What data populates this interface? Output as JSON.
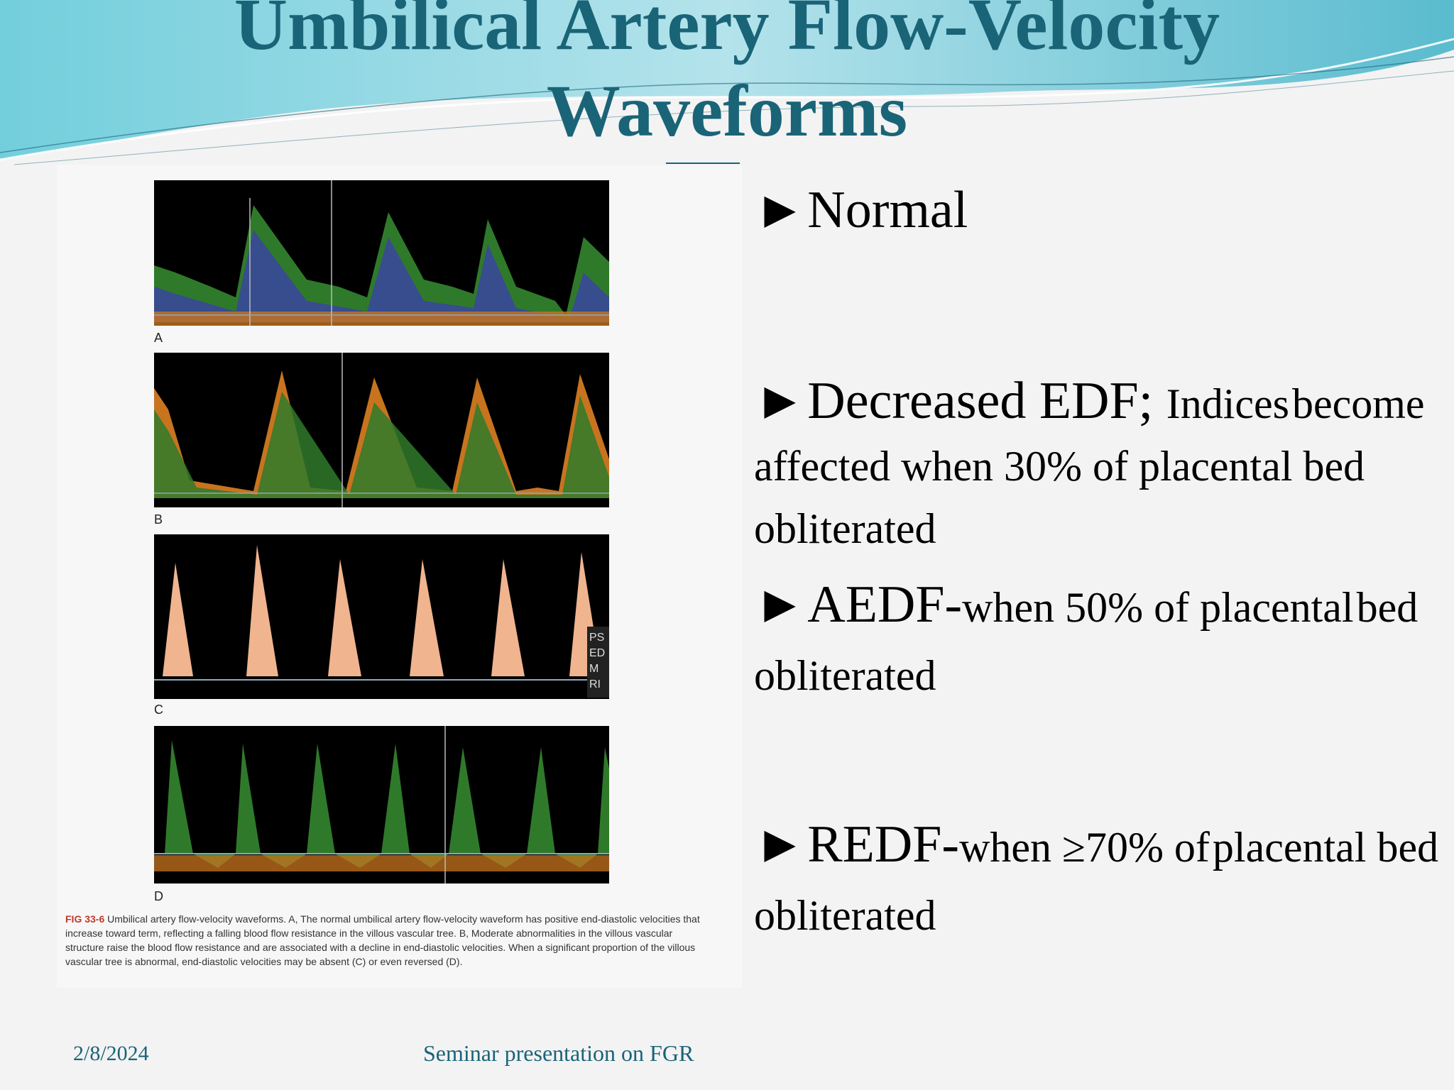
{
  "slide": {
    "title_line1": "Umbilical Artery Flow-Velocity",
    "title_line2": "Waveforms"
  },
  "figure": {
    "panel_labels": [
      "A",
      "B",
      "C",
      "D"
    ],
    "side_readout": [
      "PS",
      "ED",
      "M",
      "RI"
    ],
    "caption_id": "FIG 33-6",
    "caption_text": " Umbilical artery flow-velocity waveforms. A, The normal umbilical artery flow-velocity waveform has positive end-diastolic velocities that increase toward term, reflecting a falling blood flow resistance in the villous vascular tree. B, Moderate abnormalities in the villous vascular structure raise the blood flow resistance and are associated with a decline in end-diastolic velocities. When a significant proportion of the villous vascular tree is abnormal, end-diastolic velocities may be absent (C) or even reversed (D)."
  },
  "bullets": [
    {
      "arrow": "►",
      "lead": "Normal",
      "small": "",
      "rest": ""
    },
    {
      "arrow": "►",
      "lead": "Decreased EDF; ",
      "small": "Indices",
      "rest": "become affected when 30% of placental bed obliterated"
    },
    {
      "arrow": "►",
      "lead": "AEDF-",
      "small": "when 50% of placental",
      "rest": "bed obliterated"
    },
    {
      "arrow": "►",
      "lead": "REDF-",
      "small": "when ≥70% of",
      "rest": "placental bed obliterated"
    }
  ],
  "footer": {
    "date": "2/8/2024",
    "center": "Seminar presentation on FGR"
  },
  "colors": {
    "title": "#1a6478",
    "doppler_green": "#2f7a2a",
    "doppler_orange": "#c8741f",
    "doppler_peach": "#f0b48f",
    "doppler_blue": "#3b3fb0"
  }
}
